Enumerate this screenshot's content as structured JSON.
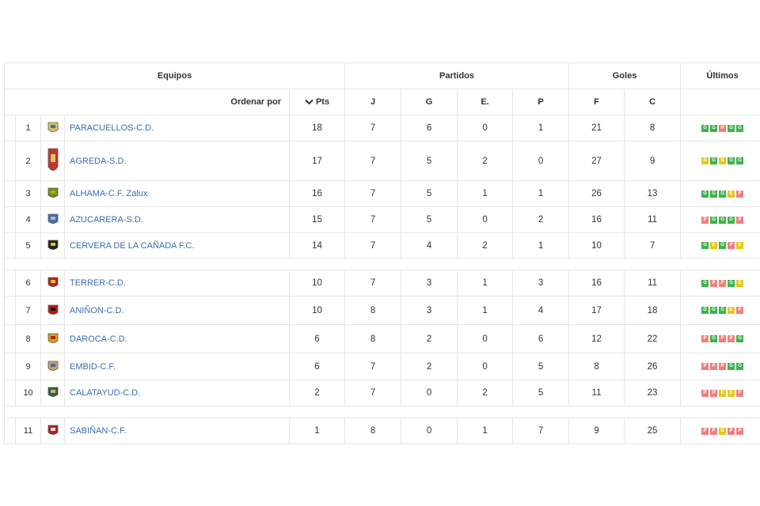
{
  "headers": {
    "equipos": "Equipos",
    "partidos": "Partidos",
    "goles": "Goles",
    "ultimos": "Últimos",
    "ordenar_por": "Ordenar por",
    "pts": "Pts",
    "j": "J",
    "g": "G",
    "e": "E.",
    "p": "P",
    "f": "F",
    "c": "C"
  },
  "colors": {
    "win": "#3cb44b",
    "draw": "#e6c81e",
    "loss": "#ef7f7f",
    "link": "#3b6db3"
  },
  "rows": [
    {
      "pos": "1",
      "team": "PARACUELLOS-C.D.",
      "pts": "18",
      "j": "7",
      "g": "6",
      "e": "0",
      "p": "1",
      "f": "21",
      "c": "8",
      "form": [
        "G",
        "G",
        "P",
        "G",
        "G"
      ],
      "crest": "crest-icon"
    },
    {
      "pos": "2",
      "team": "AGREDA-S.D.",
      "pts": "17",
      "j": "7",
      "g": "5",
      "e": "2",
      "p": "0",
      "f": "27",
      "c": "9",
      "form": [
        "E",
        "G",
        "E",
        "G",
        "G"
      ],
      "crest": "crest-icon"
    },
    {
      "pos": "3",
      "team": "ALHAMA-C.F. Zalux",
      "pts": "16",
      "j": "7",
      "g": "5",
      "e": "1",
      "p": "1",
      "f": "26",
      "c": "13",
      "form": [
        "G",
        "G",
        "G",
        "E",
        "P"
      ],
      "crest": "crest-icon"
    },
    {
      "pos": "4",
      "team": "AZUCARERA-S.D.",
      "pts": "15",
      "j": "7",
      "g": "5",
      "e": "0",
      "p": "2",
      "f": "16",
      "c": "11",
      "form": [
        "P",
        "G",
        "G",
        "G",
        "P"
      ],
      "crest": "crest-icon"
    },
    {
      "pos": "5",
      "team": "CERVERA DE LA CAÑADA F.C.",
      "pts": "14",
      "j": "7",
      "g": "4",
      "e": "2",
      "p": "1",
      "f": "10",
      "c": "7",
      "form": [
        "G",
        "E",
        "G",
        "P",
        "E"
      ],
      "crest": "crest-icon"
    },
    {
      "pos": "6",
      "team": "TERRER-C.D.",
      "pts": "10",
      "j": "7",
      "g": "3",
      "e": "1",
      "p": "3",
      "f": "16",
      "c": "11",
      "form": [
        "G",
        "P",
        "P",
        "G",
        "E"
      ],
      "crest": "crest-icon"
    },
    {
      "pos": "7",
      "team": "ANIÑON-C.D.",
      "pts": "10",
      "j": "8",
      "g": "3",
      "e": "1",
      "p": "4",
      "f": "17",
      "c": "18",
      "form": [
        "G",
        "G",
        "G",
        "E",
        "P"
      ],
      "crest": "crest-icon"
    },
    {
      "pos": "8",
      "team": "DAROCA-C.D.",
      "pts": "6",
      "j": "8",
      "g": "2",
      "e": "0",
      "p": "6",
      "f": "12",
      "c": "22",
      "form": [
        "P",
        "G",
        "P",
        "P",
        "G"
      ],
      "crest": "crest-icon"
    },
    {
      "pos": "9",
      "team": "EMBID-C.F.",
      "pts": "6",
      "j": "7",
      "g": "2",
      "e": "0",
      "p": "5",
      "f": "8",
      "c": "26",
      "form": [
        "P",
        "P",
        "P",
        "G",
        "G"
      ],
      "crest": "crest-icon"
    },
    {
      "pos": "10",
      "team": "CALATAYUD-C.D.",
      "pts": "2",
      "j": "7",
      "g": "0",
      "e": "2",
      "p": "5",
      "f": "11",
      "c": "23",
      "form": [
        "P",
        "P",
        "E",
        "E",
        "P"
      ],
      "crest": "crest-icon"
    },
    {
      "pos": "11",
      "team": "SABIÑAN-C.F.",
      "pts": "1",
      "j": "8",
      "g": "0",
      "e": "1",
      "p": "7",
      "f": "9",
      "c": "25",
      "form": [
        "P",
        "P",
        "E",
        "P",
        "P"
      ],
      "crest": "crest-icon"
    }
  ]
}
